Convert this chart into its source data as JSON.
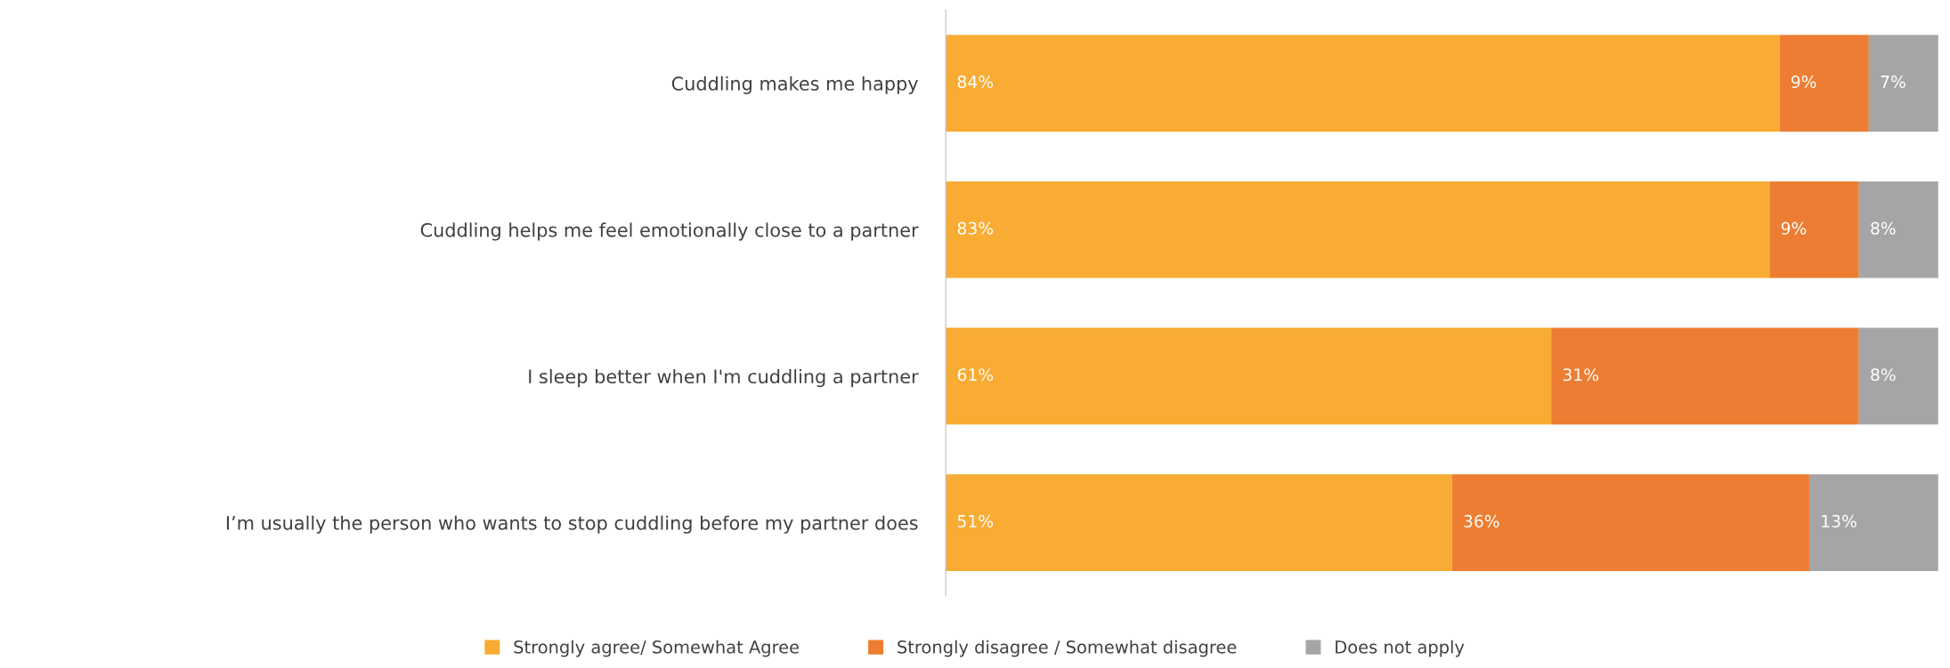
{
  "chart_data": {
    "type": "bar",
    "orientation": "horizontal",
    "stacked": true,
    "categories": [
      "Cuddling makes me happy",
      "Cuddling helps me feel emotionally close to a partner",
      "I sleep better when I'm cuddling a partner",
      "I’m usually the person who wants to stop cuddling before my partner does"
    ],
    "series": [
      {
        "name": "Strongly agree/ Somewhat Agree",
        "color": "#f9ac33",
        "values": [
          84,
          83,
          61,
          51
        ],
        "value_labels": [
          "84%",
          "83%",
          "61%",
          "51%"
        ]
      },
      {
        "name": "Strongly disagree / Somewhat disagree",
        "color": "#ec7d32",
        "values": [
          9,
          9,
          31,
          36
        ],
        "value_labels": [
          "9%",
          "9%",
          "31%",
          "36%"
        ]
      },
      {
        "name": "Does not apply",
        "color": "#a5a5a5",
        "values": [
          7,
          8,
          8,
          13
        ],
        "value_labels": [
          "7%",
          "8%",
          "8%",
          "13%"
        ]
      }
    ],
    "xlim": [
      0,
      100
    ],
    "tick_labels": "y",
    "legend": "bottom",
    "grid": false
  }
}
